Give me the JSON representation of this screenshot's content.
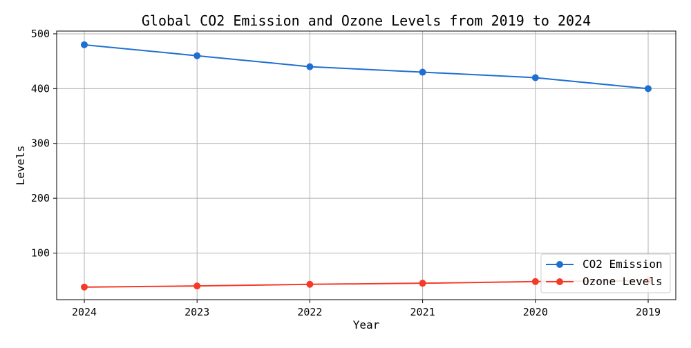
{
  "chart_data": {
    "type": "line",
    "title": "Global CO2 Emission and Ozone Levels from 2019 to 2024",
    "xlabel": "Year",
    "ylabel": "Levels",
    "categories": [
      "2024",
      "2023",
      "2022",
      "2021",
      "2020",
      "2019"
    ],
    "series": [
      {
        "name": "CO2 Emission",
        "color": "#1f6fd0",
        "values": [
          480,
          460,
          440,
          430,
          420,
          400
        ]
      },
      {
        "name": "Ozone Levels",
        "color": "#f53a28",
        "values": [
          38,
          40,
          43,
          45,
          48,
          50
        ]
      }
    ],
    "ylim": [
      15,
      505
    ],
    "yticks": [
      100,
      200,
      300,
      400,
      500
    ],
    "grid": true,
    "legend_position": "bottom-right",
    "marker": "circle"
  }
}
